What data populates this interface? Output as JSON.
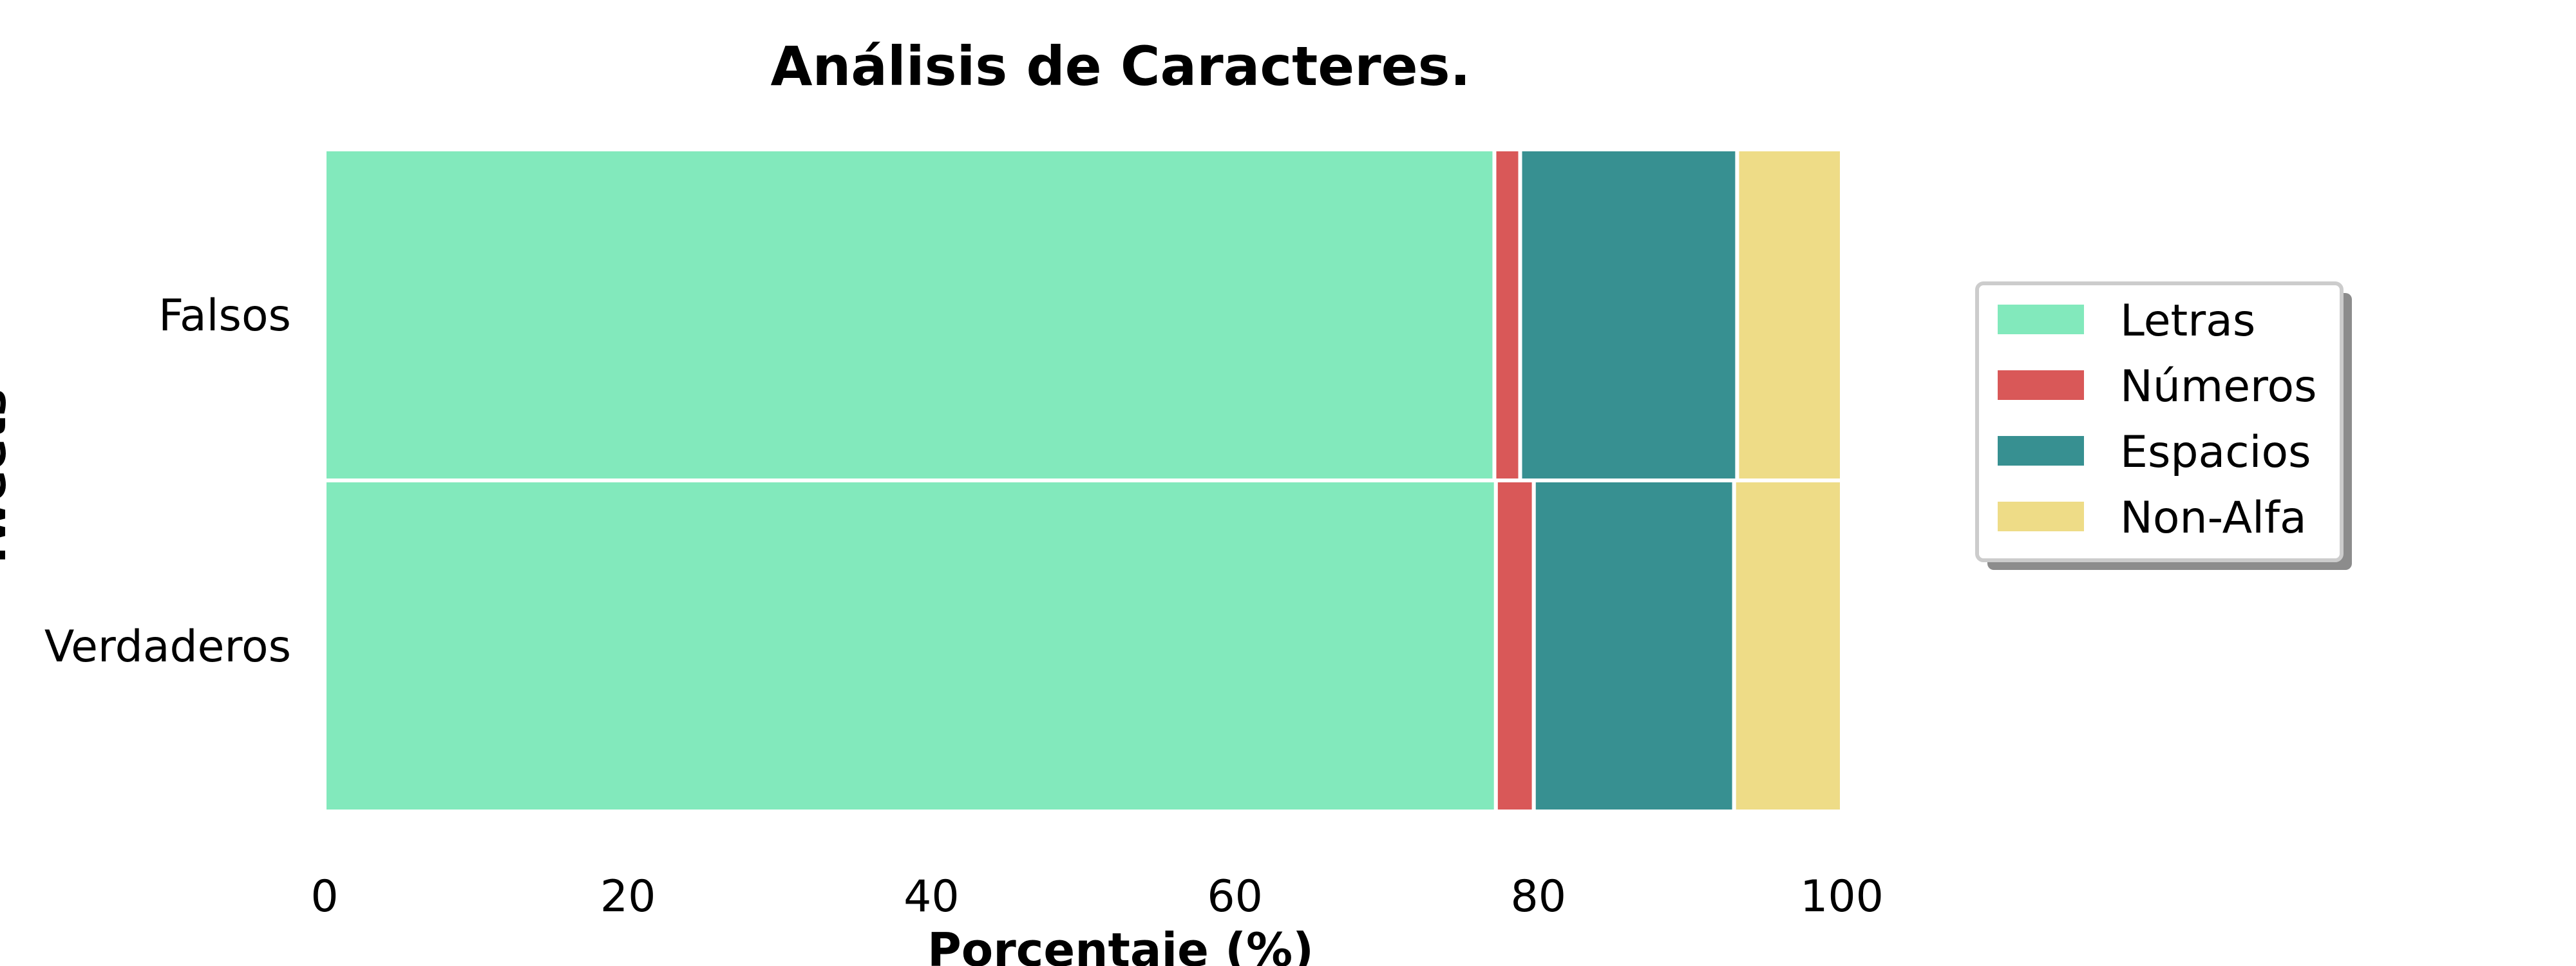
{
  "chart_data": {
    "type": "bar",
    "orientation": "horizontal",
    "stacked": true,
    "title": "Análisis de Caracteres.",
    "xlabel": "Porcentaje (%)",
    "ylabel": "Tweets",
    "categories": [
      "Falsos",
      "Verdaderos"
    ],
    "xlim": [
      0,
      100
    ],
    "xticks": [
      "0",
      "20",
      "40",
      "60",
      "80",
      "100"
    ],
    "grid": false,
    "legend_position": "right",
    "series": [
      {
        "name": "Letras",
        "color": "#82e9bc",
        "values": [
          77.1,
          77.2
        ]
      },
      {
        "name": "Números",
        "color": "#d95858",
        "values": [
          1.7,
          2.5
        ]
      },
      {
        "name": "Espacios",
        "color": "#379091",
        "values": [
          14.3,
          13.2
        ]
      },
      {
        "name": "Non-Alfa",
        "color": "#eedc87",
        "values": [
          6.9,
          7.1
        ]
      }
    ]
  }
}
